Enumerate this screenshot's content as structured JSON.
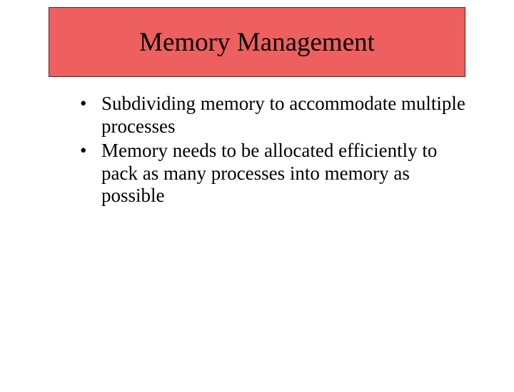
{
  "slide": {
    "title": "Memory Management",
    "title_box": {
      "background_color": "#ee5f5f",
      "border_color": "#5a2222",
      "title_fontsize": 37,
      "title_color": "#000000"
    },
    "bullets": [
      "Subdividing memory to accommodate multiple processes",
      "Memory needs to be allocated efficiently to pack as many processes into memory as possible"
    ],
    "bullet_fontsize": 27,
    "bullet_color": "#000000",
    "background_color": "#ffffff",
    "font_family": "Times New Roman"
  }
}
